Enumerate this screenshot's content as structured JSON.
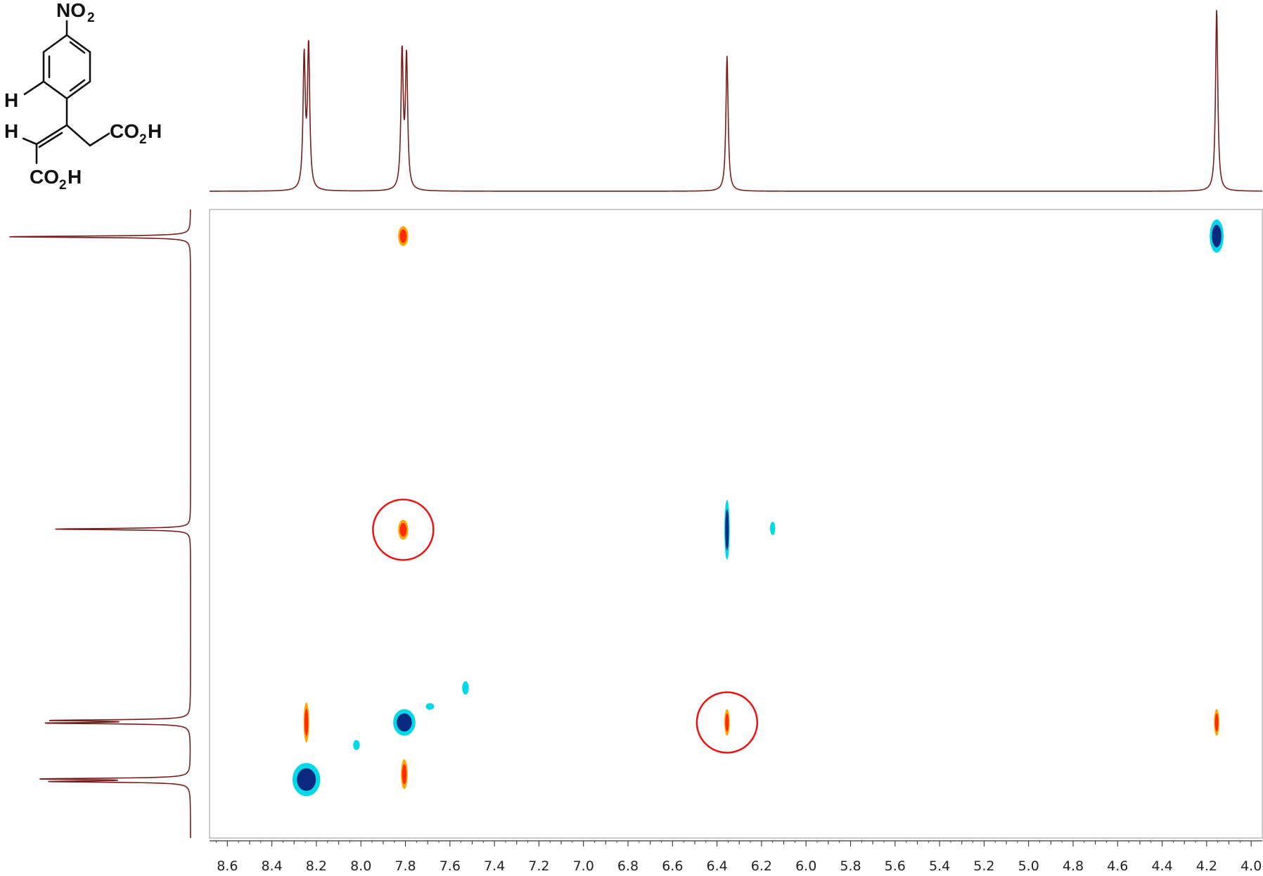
{
  "structure": {
    "labels": {
      "nitro": "NO",
      "nitro_sub": "2",
      "h_ring": "H",
      "h_vinyl": "H",
      "acid_right": "CO",
      "acid_right_sub": "2",
      "acid_right_end": "H",
      "acid_bottom": "CO",
      "acid_bottom_sub": "2",
      "acid_bottom_end": "H"
    }
  },
  "chart_data": {
    "type": "heatmap",
    "title": "",
    "xlabel": "",
    "ylabel": "",
    "x_axis": {
      "reversed": true,
      "range": [
        8.68,
        3.95
      ],
      "major_step": 0.2,
      "minor_step": 0.1,
      "tick_labels": [
        "8.6",
        "8.4",
        "8.2",
        "8.0",
        "7.8",
        "7.6",
        "7.4",
        "7.2",
        "7.0",
        "6.8",
        "6.6",
        "6.4",
        "6.2",
        "6.0",
        "5.8",
        "5.6",
        "5.4",
        "5.2",
        "5.0",
        "4.8",
        "4.6",
        "4.4",
        "4.2",
        "4.0"
      ]
    },
    "y_axis": {
      "reversed": false,
      "range": [
        3.95,
        8.68
      ],
      "tick_labels": []
    },
    "projection_1d_peaks": [
      {
        "shift": 8.255,
        "height": 0.72,
        "linewidth": 0.006
      },
      {
        "shift": 8.235,
        "height": 0.78,
        "linewidth": 0.006
      },
      {
        "shift": 7.815,
        "height": 0.75,
        "linewidth": 0.006
      },
      {
        "shift": 7.795,
        "height": 0.72,
        "linewidth": 0.006
      },
      {
        "shift": 6.355,
        "height": 0.74,
        "linewidth": 0.006
      },
      {
        "shift": 4.155,
        "height": 1.0,
        "linewidth": 0.006
      }
    ],
    "cross_peaks": [
      {
        "x": 7.81,
        "y": 4.15,
        "phase": "positive",
        "wx": 0.018,
        "wy": 0.06
      },
      {
        "x": 4.155,
        "y": 4.15,
        "phase": "negative",
        "wx": 0.025,
        "wy": 0.1
      },
      {
        "x": 7.81,
        "y": 6.36,
        "phase": "positive",
        "wx": 0.018,
        "wy": 0.06,
        "circled": true
      },
      {
        "x": 6.355,
        "y": 6.36,
        "phase": "negative",
        "wx": 0.008,
        "wy": 0.18
      },
      {
        "x": 6.15,
        "y": 6.35,
        "phase": "weak-negative",
        "wx": 0.008,
        "wy": 0.04
      },
      {
        "x": 8.245,
        "y": 7.81,
        "phase": "positive",
        "wx": 0.01,
        "wy": 0.12
      },
      {
        "x": 8.245,
        "y": 8.24,
        "phase": "negative",
        "wx": 0.05,
        "wy": 0.1
      },
      {
        "x": 8.02,
        "y": 7.98,
        "phase": "weak-negative",
        "wx": 0.012,
        "wy": 0.03
      },
      {
        "x": 7.805,
        "y": 7.81,
        "phase": "negative",
        "wx": 0.04,
        "wy": 0.08
      },
      {
        "x": 7.805,
        "y": 8.2,
        "phase": "positive",
        "wx": 0.012,
        "wy": 0.09
      },
      {
        "x": 7.69,
        "y": 7.69,
        "phase": "weak-negative",
        "wx": 0.015,
        "wy": 0.02
      },
      {
        "x": 7.53,
        "y": 7.55,
        "phase": "weak-negative",
        "wx": 0.012,
        "wy": 0.04
      },
      {
        "x": 6.355,
        "y": 7.81,
        "phase": "positive",
        "wx": 0.008,
        "wy": 0.08,
        "circled": true
      },
      {
        "x": 4.155,
        "y": 7.81,
        "phase": "positive",
        "wx": 0.008,
        "wy": 0.08
      }
    ],
    "colors": {
      "trace": "#7a1c1c",
      "positive_core": "#ff2a00",
      "positive_edge": "#ffa400",
      "negative_core": "#0a2a80",
      "negative_edge": "#00d8e8",
      "circle": "#ee1111",
      "frame": "#bbbbbb"
    }
  }
}
